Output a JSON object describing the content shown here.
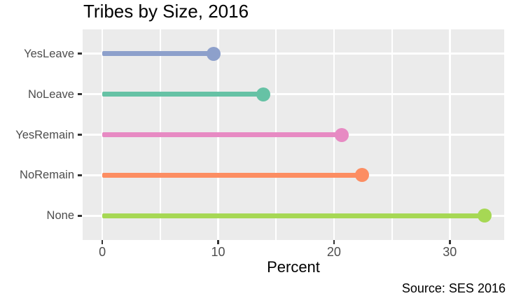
{
  "chart_data": {
    "type": "lollipop",
    "orientation": "horizontal",
    "title": "Tribes by Size, 2016",
    "xlabel": "Percent",
    "ylabel": "",
    "caption": "Source: SES 2016",
    "categories": [
      "YesLeave",
      "NoLeave",
      "YesRemain",
      "NoRemain",
      "None"
    ],
    "values": [
      9.6,
      13.9,
      20.7,
      22.4,
      33.0
    ],
    "colors": [
      "#8DA0CB",
      "#66C2A5",
      "#E78AC3",
      "#FC8D62",
      "#A6D854"
    ],
    "x_major_ticks": [
      0,
      10,
      20,
      30
    ],
    "x_minor_ticks": [
      5,
      15,
      25
    ],
    "xlim": [
      -1.7,
      34.7
    ],
    "legend_position": "none",
    "grid": true,
    "panel_bg": "#EBEBEB",
    "grid_color": "#FFFFFF",
    "axis_text_color": "#4D4D4D",
    "tick_mark_color": "#333333"
  }
}
